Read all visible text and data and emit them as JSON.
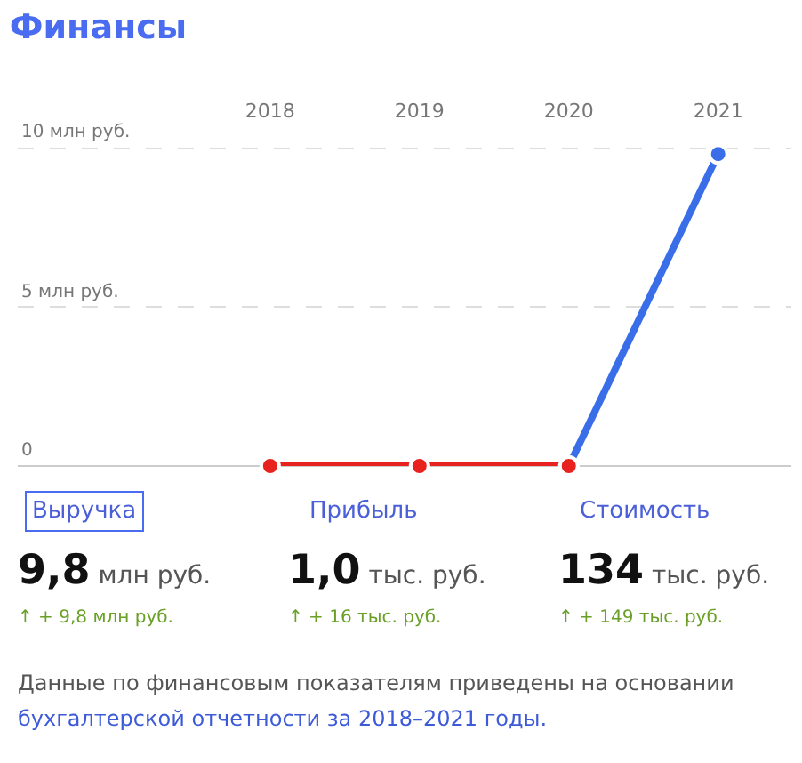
{
  "chart_data": {
    "type": "line",
    "title": "Финансы",
    "categories": [
      "2018",
      "2019",
      "2020",
      "2021"
    ],
    "series": [
      {
        "color": "#3a6ee8",
        "values": [
          null,
          null,
          0,
          9.8
        ]
      },
      {
        "color": "#e8231f",
        "values": [
          0,
          0,
          0,
          null
        ]
      }
    ],
    "ylim": [
      0,
      10
    ],
    "yticks": [
      0,
      {
        "value": 5,
        "label": "5 млн руб."
      },
      {
        "value": 10,
        "label": "10 млн руб."
      }
    ],
    "grid": "y",
    "marker": "circle",
    "line_style": "solid",
    "annotations": [
      "Выручка",
      "Прибыль",
      "Стоимость",
      "9,8 млн руб.",
      "1,0 тыс. руб.",
      "134 тыс. руб.",
      "↑ + 9,8 млн руб.",
      "↑ + 16 тыс. руб.",
      "↑ + 149 тыс. руб.",
      "Данные по финансовым показателям приведены на основании",
      "бухгалтерской отчетности за 2018–2021 годы."
    ]
  }
}
